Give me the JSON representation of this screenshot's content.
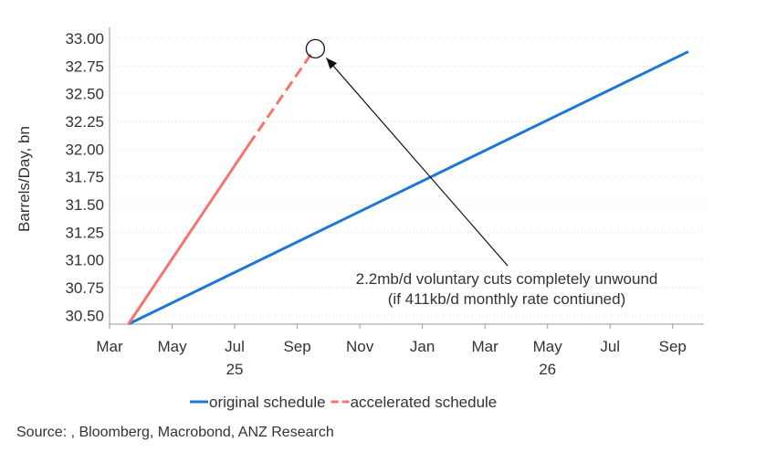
{
  "chart_data": {
    "type": "line",
    "title": "",
    "xlabel": "",
    "ylabel": "Barrels/Day, bn",
    "ylim": [
      30.42,
      33.0
    ],
    "yticks": [
      "33.00",
      "32.75",
      "32.50",
      "32.25",
      "32.00",
      "31.75",
      "31.50",
      "31.25",
      "31.00",
      "30.75",
      "30.50"
    ],
    "ytick_values": [
      33.0,
      32.75,
      32.5,
      32.25,
      32.0,
      31.75,
      31.5,
      31.25,
      31.0,
      30.75,
      30.5
    ],
    "xlim_months": [
      0,
      19
    ],
    "xticks": [
      {
        "label": "Mar",
        "month": 0
      },
      {
        "label": "May",
        "month": 2
      },
      {
        "label": "Jul",
        "month": 4
      },
      {
        "label": "Sep",
        "month": 6
      },
      {
        "label": "Nov",
        "month": 8
      },
      {
        "label": "Jan",
        "month": 10
      },
      {
        "label": "Mar",
        "month": 12
      },
      {
        "label": "May",
        "month": 14
      },
      {
        "label": "Jul",
        "month": 16
      },
      {
        "label": "Sep",
        "month": 18
      }
    ],
    "year_labels": [
      {
        "label": "25",
        "month": 4
      },
      {
        "label": "26",
        "month": 14
      }
    ],
    "series": [
      {
        "name": "original schedule",
        "color": "#1f77d4",
        "style": "solid",
        "points": [
          {
            "x": 0.6,
            "y": 30.42
          },
          {
            "x": 18.5,
            "y": 32.88
          }
        ]
      },
      {
        "name": "accelerated schedule",
        "color": "#f4756b",
        "style": "solid-then-dashed",
        "points": [
          {
            "x": 0.6,
            "y": 30.42
          },
          {
            "x": 4.45,
            "y": 32.04
          },
          {
            "x": 6.52,
            "y": 32.89
          }
        ],
        "dashed_from_index": 1
      }
    ],
    "legend": [
      {
        "label": "original schedule",
        "color": "#1f77d4",
        "style": "solid"
      },
      {
        "label": "accelerated schedule",
        "color": "#f4756b",
        "style": "dashed"
      }
    ],
    "legend_position": "bottom-center",
    "annotation": {
      "lines": [
        "2.2mb/d voluntary cuts completely unwound",
        "(if 411kb/d monthly rate contiuned)"
      ],
      "target": {
        "x": 6.52,
        "y": 32.89
      }
    },
    "grid": true
  },
  "source": "Source: , Bloomberg, Macrobond, ANZ Research"
}
